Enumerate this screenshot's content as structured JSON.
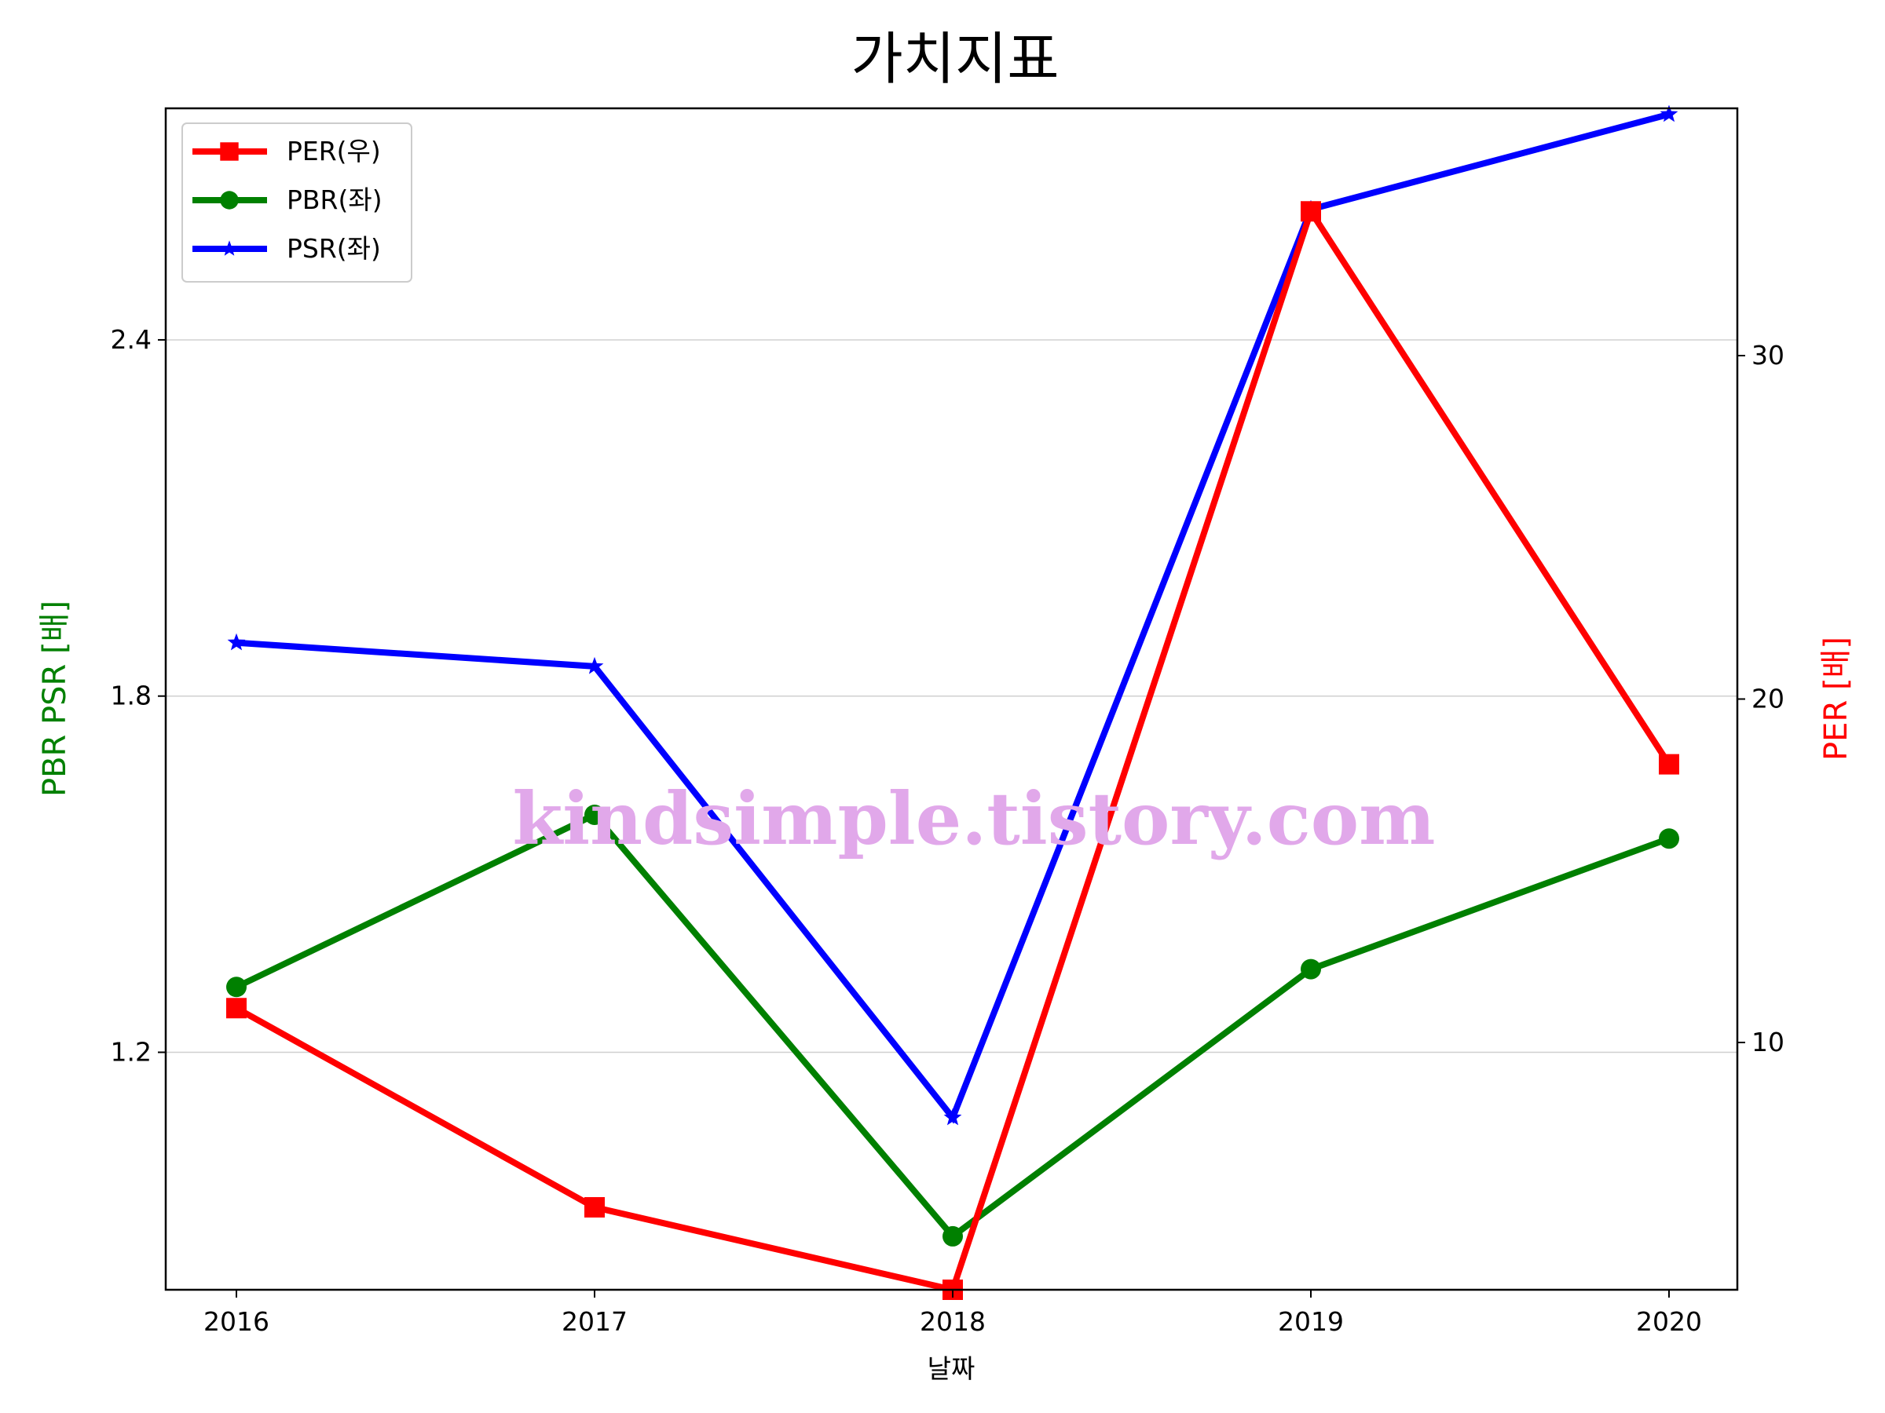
{
  "chart_data": {
    "type": "line",
    "title": "가치지표",
    "xlabel": "날짜",
    "ylabel_left": "PBR PSR [배]",
    "ylabel_right": "PER [배]",
    "categories": [
      "2016",
      "2017",
      "2018",
      "2019",
      "2020"
    ],
    "ylim_left": [
      0.8,
      2.79
    ],
    "ylim_right": [
      2.8,
      37.2
    ],
    "yticks_left": [
      "1.2",
      "1.8",
      "2.4"
    ],
    "yticks_right": [
      "10",
      "20",
      "30"
    ],
    "grid": "horizontal, left axis",
    "legend_position": "top-left",
    "series": [
      {
        "name": "PER(우)",
        "axis": "right",
        "color": "#ff0000",
        "marker": "square",
        "values": [
          11.0,
          5.2,
          2.8,
          34.2,
          18.1
        ]
      },
      {
        "name": "PBR(좌)",
        "axis": "left",
        "color": "#008000",
        "marker": "circle",
        "values": [
          1.31,
          1.6,
          0.89,
          1.34,
          1.56
        ]
      },
      {
        "name": "PSR(좌)",
        "axis": "left",
        "color": "#0000ff",
        "marker": "star",
        "values": [
          1.89,
          1.85,
          1.09,
          2.62,
          2.78
        ]
      }
    ]
  },
  "watermark": {
    "text": "kindsimple.tistory.com",
    "color": "#e1a8ea"
  },
  "colors": {
    "left_axis_label": "#008000",
    "right_axis_label": "#ff0000"
  }
}
